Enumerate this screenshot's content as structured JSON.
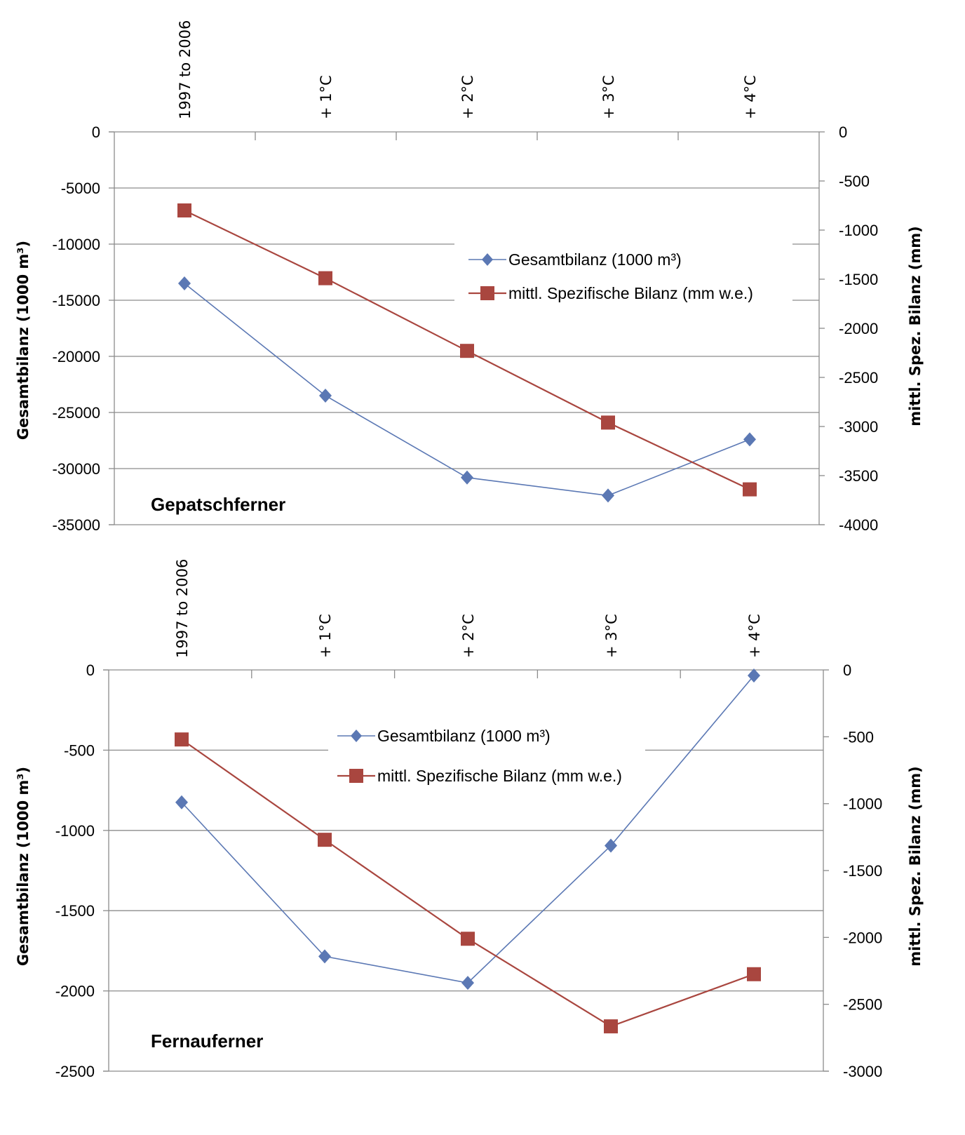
{
  "chart_data": [
    {
      "type": "line",
      "title": "Gepatschferner",
      "categories": [
        "1997 to 2006",
        "+ 1°C",
        "+ 2°C",
        "+ 3°C",
        "+ 4°C"
      ],
      "ylabel": "Gesamtbilanz (1000 m³)",
      "y2label": "mittl. Spez. Bilanz (mm)",
      "ylim": [
        -35000,
        0
      ],
      "y2lim": [
        -4000,
        0
      ],
      "yticks": [
        0,
        -5000,
        -10000,
        -15000,
        -20000,
        -25000,
        -30000,
        -35000
      ],
      "yticklabels": [
        "0",
        "-5000",
        "-10000",
        "-15000",
        "-20000",
        "-25000",
        "-30000",
        "-35000"
      ],
      "y2ticks": [
        0,
        -500,
        -1000,
        -1500,
        -2000,
        -2500,
        -3000,
        -3500,
        -4000
      ],
      "y2ticklabels": [
        "0",
        "-500",
        "-1000",
        "-1500",
        "-2000",
        "-2500",
        "-3000",
        "-3500",
        "-4000"
      ],
      "grid": true,
      "legend_position": "upper-right",
      "series": [
        {
          "name": "Gesamtbilanz (1000 m³)",
          "axis": "left",
          "marker": "diamond",
          "color": "#5b78b4",
          "values": [
            -13500,
            -23500,
            -30800,
            -32400,
            -27400
          ]
        },
        {
          "name": "mittl. Spezifische Bilanz (mm w.e.)",
          "axis": "right",
          "marker": "square",
          "color": "#a9463f",
          "values": [
            -800,
            -1490,
            -2230,
            -2960,
            -3640
          ]
        }
      ]
    },
    {
      "type": "line",
      "title": "Fernauferner",
      "categories": [
        "1997 to 2006",
        "+ 1°C",
        "+ 2°C",
        "+ 3°C",
        "+ 4°C"
      ],
      "ylabel": "Gesamtbilanz (1000 m³)",
      "y2label": "mittl. Spez. Bilanz (mm)",
      "ylim": [
        -2500,
        0
      ],
      "y2lim": [
        -3000,
        0
      ],
      "yticks": [
        0,
        -500,
        -1000,
        -1500,
        -2000,
        -2500
      ],
      "yticklabels": [
        "0",
        "-500",
        "-1000",
        "-1500",
        "-2000",
        "-2500"
      ],
      "y2ticks": [
        0,
        -500,
        -1000,
        -1500,
        -2000,
        -2500,
        -3000
      ],
      "y2ticklabels": [
        "0",
        "-500",
        "-1000",
        "-1500",
        "-2000",
        "-2500",
        "-3000"
      ],
      "grid": true,
      "legend_position": "upper-center",
      "series": [
        {
          "name": "Gesamtbilanz (1000 m³)",
          "axis": "left",
          "marker": "diamond",
          "color": "#5b78b4",
          "values": [
            -825,
            -1785,
            -1950,
            -1095,
            -35
          ]
        },
        {
          "name": "mittl. Spezifische Bilanz (mm w.e.)",
          "axis": "right",
          "marker": "square",
          "color": "#a9463f",
          "values": [
            -520,
            -1270,
            -2010,
            -2665,
            -2275
          ]
        }
      ]
    }
  ]
}
